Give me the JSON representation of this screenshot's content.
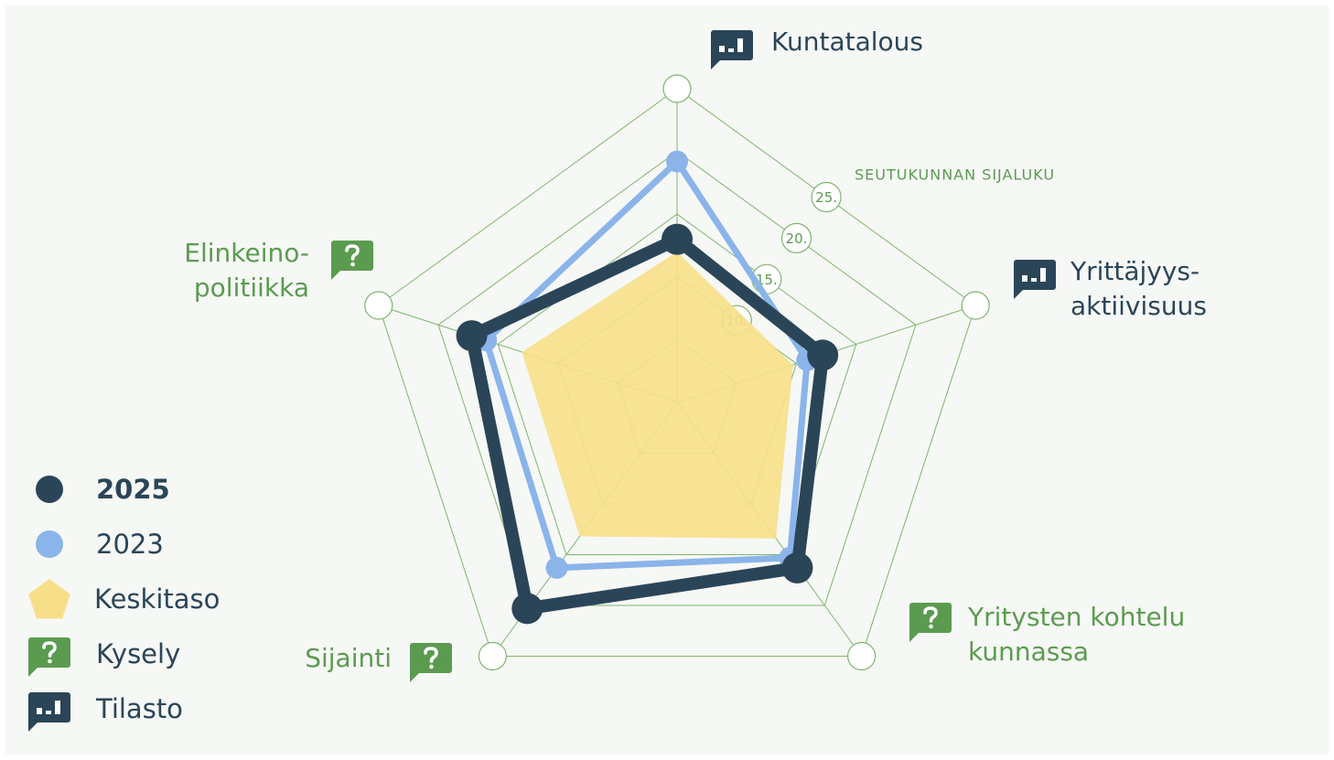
{
  "chart_data": {
    "type": "radar",
    "axis_label": "SEUTUKUNNAN SIJALUKU",
    "axes": [
      {
        "lines": [
          "Kuntatalous"
        ],
        "icon": "tilasto"
      },
      {
        "lines": [
          "Yrittäjyys-",
          "aktiivisuus"
        ],
        "icon": "tilasto"
      },
      {
        "lines": [
          "Yritysten kohtelu",
          "kunnassa"
        ],
        "icon": "kysely"
      },
      {
        "lines": [
          "Sijainti"
        ],
        "icon": "kysely"
      },
      {
        "lines": [
          "Elinkeino-",
          "politiikka"
        ],
        "icon": "kysely"
      }
    ],
    "rlim": [
      0,
      25
    ],
    "rgrid": [
      5,
      10,
      15,
      20,
      25
    ],
    "rticks": [
      {
        "value": 10,
        "label": "10."
      },
      {
        "value": 15,
        "label": "15."
      },
      {
        "value": 20,
        "label": "20."
      },
      {
        "value": 25,
        "label": "25."
      }
    ],
    "series": [
      {
        "name": "Keskitaso",
        "color": "#f7df8a",
        "style": "area",
        "values": [
          12.0,
          9.7,
          13.4,
          13.2,
          13.0
        ]
      },
      {
        "name": "2023",
        "color": "#8ab4ea",
        "style": "line",
        "values": [
          19.2,
          10.9,
          15.3,
          16.3,
          16.0
        ]
      },
      {
        "name": "2025",
        "color": "#2b4558",
        "style": "line",
        "values": [
          13.0,
          12.2,
          16.3,
          20.3,
          17.2
        ]
      }
    ],
    "legend_order": [
      2,
      1,
      0
    ],
    "icon_legend": [
      {
        "name": "Kysely",
        "icon": "kysely"
      },
      {
        "name": "Tilasto",
        "icon": "tilasto"
      }
    ],
    "icon_colors": {
      "kysely": "#5b9b50",
      "tilasto": "#2b4558"
    },
    "grid_color": "#7fb46e"
  }
}
